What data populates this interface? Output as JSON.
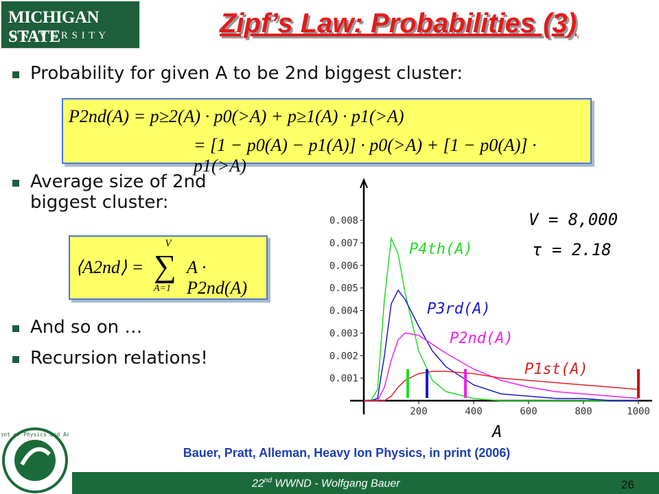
{
  "header": {
    "logo_line1": "MICHIGAN STATE",
    "logo_line2": "U N I V E R S I T Y",
    "title": "Zipf’s Law: Probabilities (3)"
  },
  "bullets": [
    "Probability for given A to be 2nd biggest cluster:",
    "Average size of 2nd biggest cluster:",
    "And so on …",
    "Recursion relations!"
  ],
  "formula1": [
    "P2nd(A) = p≥2(A) · p0(>A) + p≥1(A) · p1(>A)",
    "= [1 − p0(A) − p1(A)] · p0(>A) + [1 − p0(A)] · p1(>A)"
  ],
  "formula2": {
    "lhs": "⟨A2nd⟩ =",
    "upper": "V",
    "sum": "∑",
    "lower": "A=1",
    "rhs": "A · P2nd(A)"
  },
  "chart_data": {
    "type": "line",
    "xlabel": "A",
    "annotations": [
      "V = 8,000",
      "τ = 2.18"
    ],
    "x": [
      0,
      25,
      50,
      75,
      100,
      125,
      150,
      200,
      250,
      300,
      400,
      500,
      600,
      700,
      800,
      900,
      1000
    ],
    "series": [
      {
        "name": "P4th(A)",
        "color": "#22dd22",
        "values": [
          0,
          0,
          0.0005,
          0.0045,
          0.0072,
          0.0065,
          0.0048,
          0.0022,
          0.0009,
          0.0004,
          0.0001,
          0,
          0,
          0,
          0,
          0,
          0
        ]
      },
      {
        "name": "P3rd(A)",
        "color": "#1a1ad0",
        "values": [
          0,
          0,
          0.0001,
          0.002,
          0.0043,
          0.0049,
          0.0045,
          0.0033,
          0.0022,
          0.0015,
          0.0007,
          0.0003,
          0.0002,
          0.0001,
          0.0001,
          0,
          0
        ]
      },
      {
        "name": "P2nd(A)",
        "color": "#ee22ee",
        "values": [
          0,
          0,
          0,
          0.0006,
          0.0018,
          0.0027,
          0.003,
          0.0029,
          0.0025,
          0.0021,
          0.0014,
          0.0009,
          0.0006,
          0.0004,
          0.0003,
          0.0002,
          0.0001
        ]
      },
      {
        "name": "P1st(A)",
        "color": "#dd2222",
        "values": [
          0,
          0,
          0,
          0,
          0.0002,
          0.0006,
          0.0009,
          0.0012,
          0.0013,
          0.0013,
          0.0012,
          0.001,
          0.0009,
          0.0008,
          0.0007,
          0.0006,
          0.0005
        ]
      }
    ],
    "markers": [
      {
        "value": 160,
        "color": "#22dd22"
      },
      {
        "value": 230,
        "color": "#1a1ad0"
      },
      {
        "value": 370,
        "color": "#ee22ee"
      },
      {
        "value": 1000,
        "color": "#cc1111"
      }
    ],
    "xlim": [
      0,
      1050
    ],
    "ylim": [
      0,
      0.0098
    ],
    "xticks": [
      200,
      400,
      600,
      800,
      1000
    ],
    "yticks": [
      0.001,
      0.002,
      0.003,
      0.004,
      0.005,
      0.006,
      0.007,
      0.008
    ]
  },
  "citation": "Bauer, Pratt, Alleman, Heavy Ion Physics, in print (2006)",
  "footer": {
    "ordinal": "22",
    "suffix": "nd",
    "event": " WWND - Wolfgang Bauer",
    "page": 26
  },
  "seal": "Department of Physics and Astronomy"
}
